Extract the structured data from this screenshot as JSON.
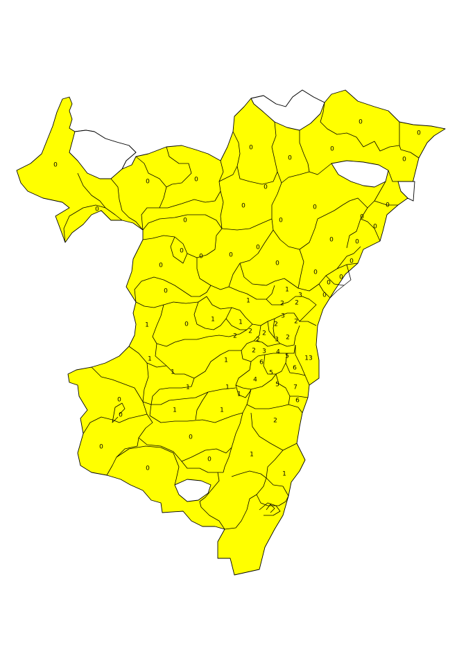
{
  "map": {
    "fill_color": "#ffff00",
    "empty_color": "#ffffff",
    "border_color": "#000000",
    "label_values": [
      "0",
      "0",
      "0",
      "0",
      "0",
      "0",
      "0",
      "0",
      "0",
      "0",
      "0",
      "0",
      "0",
      "0",
      "0",
      "0",
      "0",
      "0",
      "0",
      "0",
      "0",
      "0",
      "0",
      "0",
      "0",
      "0",
      "0",
      "0",
      "0",
      "0",
      "0",
      "0",
      "0",
      "0",
      "0",
      "0",
      "0",
      "0",
      "0",
      "1",
      "1",
      "1",
      "1",
      "1",
      "1",
      "1",
      "1",
      "1",
      "1",
      "1",
      "1",
      "1",
      "1",
      "2",
      "2",
      "2",
      "2",
      "2",
      "2",
      "2",
      "2",
      "2",
      "2",
      "2",
      "3",
      "3",
      "3",
      "3",
      "4",
      "4",
      "5",
      "5",
      "5",
      "6",
      "6",
      "6",
      "7",
      "13",
      "1",
      "1",
      "1",
      "1",
      "1",
      "0",
      "0",
      "0",
      "0",
      "0",
      "0",
      "0",
      "0",
      "0",
      "0",
      "0",
      "0",
      "0",
      "0",
      "0",
      "0",
      "0",
      "0",
      "0",
      "0",
      "0",
      "0",
      "0"
    ]
  }
}
